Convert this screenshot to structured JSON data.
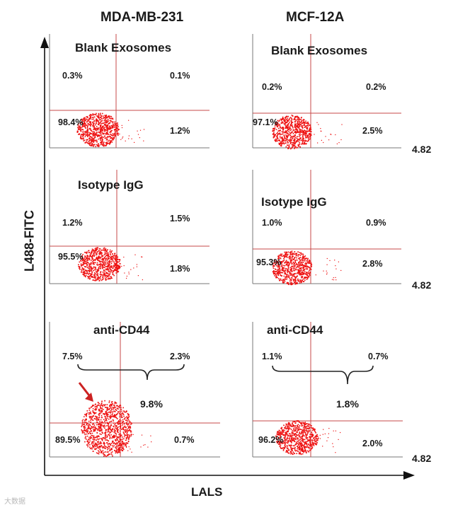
{
  "header": {
    "col1": "MDA-MB-231",
    "col2": "MCF-12A",
    "ylabel": "L488-FITC",
    "xlabel": "LALS",
    "corner_value": "4.82",
    "watermark": "大数据"
  },
  "chart_data": [
    {
      "type": "scatter",
      "cell_line": "MDA-MB-231",
      "title": "Blank Exosomes",
      "quadrants": {
        "upper_left": "0.3%",
        "upper_right": "0.1%",
        "lower_left": "98.4%",
        "lower_right": "1.2%"
      }
    },
    {
      "type": "scatter",
      "cell_line": "MCF-12A",
      "title": "Blank Exosomes",
      "quadrants": {
        "upper_left": "0.2%",
        "upper_right": "0.2%",
        "lower_left": "97.1%",
        "lower_right": "2.5%"
      }
    },
    {
      "type": "scatter",
      "cell_line": "MDA-MB-231",
      "title": "Isotype IgG",
      "quadrants": {
        "upper_left": "1.2%",
        "upper_right": "1.5%",
        "lower_left": "95.5%",
        "lower_right": "1.8%"
      }
    },
    {
      "type": "scatter",
      "cell_line": "MCF-12A",
      "title": "Isotype IgG",
      "quadrants": {
        "upper_left": "1.0%",
        "upper_right": "0.9%",
        "lower_left": "95.3%",
        "lower_right": "2.8%"
      }
    },
    {
      "type": "scatter",
      "cell_line": "MDA-MB-231",
      "title": "anti-CD44",
      "quadrants": {
        "upper_left": "7.5%",
        "upper_right": "2.3%",
        "lower_left": "89.5%",
        "lower_right": "0.7%"
      },
      "upper_total": "9.8%"
    },
    {
      "type": "scatter",
      "cell_line": "MCF-12A",
      "title": "anti-CD44",
      "quadrants": {
        "upper_left": "1.1%",
        "upper_right": "0.7%",
        "lower_left": "96.2%",
        "lower_right": "2.0%"
      },
      "upper_total": "1.8%"
    }
  ],
  "colors": {
    "dots": "#ee1111",
    "gate_line": "#c74a4a",
    "arrow": "#cc2222",
    "text": "#1a1a1a"
  }
}
